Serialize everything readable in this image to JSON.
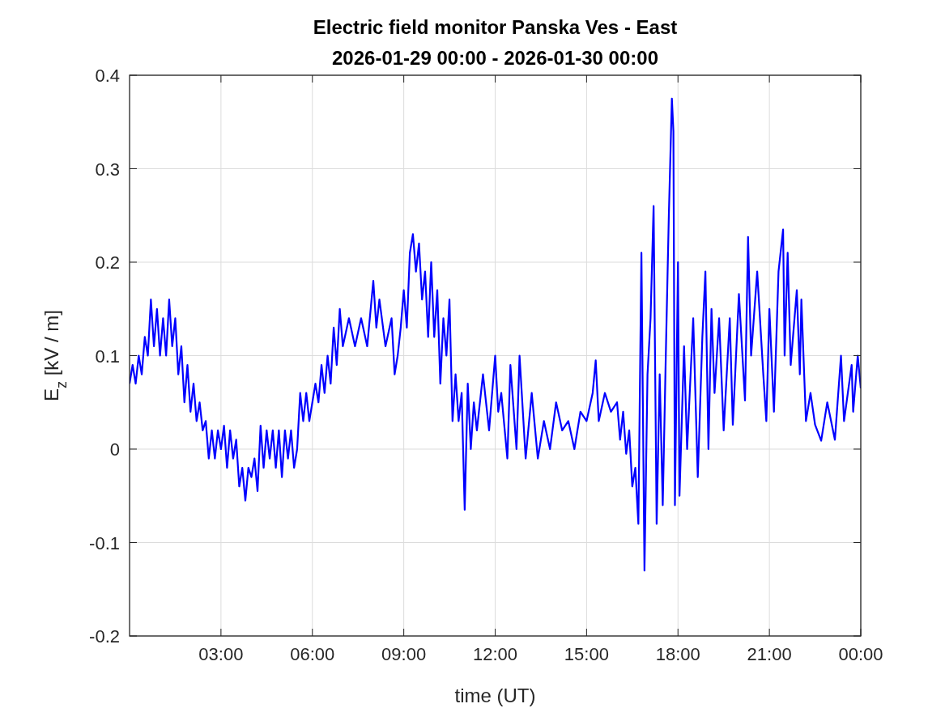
{
  "chart_data": {
    "type": "line",
    "title": "Electric field monitor Panska Ves - East",
    "subtitle": "2026-01-29 00:00 - 2026-01-30 00:00",
    "xlabel": "time (UT)",
    "ylabel": "E$_{z}$ [kV / m]",
    "xlim": [
      0,
      24
    ],
    "xticks": [
      {
        "value": 3,
        "label": "03:00"
      },
      {
        "value": 6,
        "label": "06:00"
      },
      {
        "value": 9,
        "label": "09:00"
      },
      {
        "value": 12,
        "label": "12:00"
      },
      {
        "value": 15,
        "label": "15:00"
      },
      {
        "value": 18,
        "label": "18:00"
      },
      {
        "value": 21,
        "label": "21:00"
      },
      {
        "value": 24,
        "label": "00:00"
      }
    ],
    "ylim": [
      -0.2,
      0.4
    ],
    "yticks": [
      -0.2,
      -0.1,
      0,
      0.1,
      0.2,
      0.3,
      0.4
    ],
    "grid": true,
    "series": [
      {
        "color": "#0000ff",
        "x": [
          0.0,
          0.1,
          0.2,
          0.3,
          0.4,
          0.5,
          0.6,
          0.7,
          0.8,
          0.9,
          1.0,
          1.1,
          1.2,
          1.3,
          1.4,
          1.5,
          1.6,
          1.7,
          1.8,
          1.9,
          2.0,
          2.1,
          2.2,
          2.3,
          2.4,
          2.5,
          2.6,
          2.7,
          2.8,
          2.9,
          3.0,
          3.1,
          3.2,
          3.3,
          3.4,
          3.5,
          3.6,
          3.7,
          3.8,
          3.9,
          4.0,
          4.1,
          4.2,
          4.3,
          4.4,
          4.5,
          4.6,
          4.7,
          4.8,
          4.9,
          5.0,
          5.1,
          5.2,
          5.3,
          5.4,
          5.5,
          5.6,
          5.7,
          5.8,
          5.9,
          6.0,
          6.1,
          6.2,
          6.3,
          6.4,
          6.5,
          6.6,
          6.7,
          6.8,
          6.9,
          7.0,
          7.2,
          7.4,
          7.6,
          7.8,
          8.0,
          8.1,
          8.2,
          8.4,
          8.6,
          8.7,
          8.8,
          8.9,
          9.0,
          9.1,
          9.2,
          9.3,
          9.4,
          9.5,
          9.6,
          9.7,
          9.8,
          9.9,
          10.0,
          10.1,
          10.2,
          10.3,
          10.4,
          10.5,
          10.6,
          10.7,
          10.8,
          10.9,
          11.0,
          11.1,
          11.2,
          11.3,
          11.4,
          11.6,
          11.8,
          12.0,
          12.1,
          12.2,
          12.4,
          12.5,
          12.7,
          12.8,
          13.0,
          13.2,
          13.4,
          13.6,
          13.8,
          14.0,
          14.2,
          14.4,
          14.6,
          14.8,
          15.0,
          15.2,
          15.3,
          15.4,
          15.6,
          15.8,
          16.0,
          16.1,
          16.2,
          16.3,
          16.4,
          16.5,
          16.6,
          16.7,
          16.8,
          16.9,
          17.0,
          17.1,
          17.2,
          17.3,
          17.4,
          17.5,
          17.6,
          17.7,
          17.8,
          17.85,
          17.9,
          18.0,
          18.05,
          18.2,
          18.3,
          18.5,
          18.65,
          18.8,
          18.9,
          19.0,
          19.1,
          19.2,
          19.35,
          19.5,
          19.7,
          19.8,
          20.0,
          20.2,
          20.3,
          20.4,
          20.6,
          20.8,
          20.9,
          21.0,
          21.15,
          21.3,
          21.45,
          21.5,
          21.6,
          21.7,
          21.9,
          22.0,
          22.05,
          22.2,
          22.35,
          22.5,
          22.7,
          22.9,
          23.15,
          23.35,
          23.45,
          23.7,
          23.75,
          23.9,
          24.0
        ],
        "values": [
          0.07,
          0.09,
          0.07,
          0.1,
          0.08,
          0.12,
          0.1,
          0.16,
          0.11,
          0.15,
          0.1,
          0.14,
          0.1,
          0.16,
          0.11,
          0.14,
          0.08,
          0.11,
          0.05,
          0.09,
          0.04,
          0.07,
          0.03,
          0.05,
          0.02,
          0.03,
          -0.01,
          0.02,
          -0.01,
          0.02,
          0.0,
          0.025,
          -0.02,
          0.02,
          -0.01,
          0.01,
          -0.04,
          -0.02,
          -0.055,
          -0.02,
          -0.03,
          -0.01,
          -0.045,
          0.025,
          -0.02,
          0.02,
          -0.01,
          0.02,
          -0.02,
          0.02,
          -0.03,
          0.02,
          -0.01,
          0.02,
          -0.02,
          0.0,
          0.06,
          0.03,
          0.06,
          0.03,
          0.05,
          0.07,
          0.05,
          0.09,
          0.06,
          0.1,
          0.07,
          0.13,
          0.09,
          0.15,
          0.11,
          0.14,
          0.11,
          0.14,
          0.11,
          0.18,
          0.13,
          0.16,
          0.11,
          0.14,
          0.08,
          0.1,
          0.13,
          0.17,
          0.13,
          0.21,
          0.23,
          0.19,
          0.22,
          0.16,
          0.19,
          0.12,
          0.2,
          0.12,
          0.17,
          0.07,
          0.14,
          0.1,
          0.16,
          0.03,
          0.08,
          0.03,
          0.06,
          -0.065,
          0.07,
          0.0,
          0.05,
          0.02,
          0.08,
          0.02,
          0.1,
          0.04,
          0.06,
          -0.01,
          0.09,
          0.0,
          0.1,
          -0.01,
          0.06,
          -0.01,
          0.03,
          0.0,
          0.05,
          0.02,
          0.03,
          0.0,
          0.04,
          0.03,
          0.06,
          0.095,
          0.03,
          0.06,
          0.04,
          0.05,
          0.01,
          0.04,
          -0.005,
          0.02,
          -0.04,
          -0.02,
          -0.08,
          0.21,
          -0.13,
          0.08,
          0.14,
          0.26,
          -0.08,
          0.08,
          -0.06,
          0.1,
          0.25,
          0.375,
          0.34,
          -0.06,
          0.2,
          -0.05,
          0.11,
          0.0,
          0.14,
          -0.03,
          0.12,
          0.19,
          0.0,
          0.15,
          0.06,
          0.14,
          0.02,
          0.14,
          0.026,
          0.166,
          0.052,
          0.227,
          0.1,
          0.19,
          0.08,
          0.03,
          0.15,
          0.04,
          0.19,
          0.235,
          0.1,
          0.21,
          0.09,
          0.17,
          0.08,
          0.16,
          0.03,
          0.06,
          0.026,
          0.009,
          0.05,
          0.01,
          0.1,
          0.03,
          0.09,
          0.04,
          0.1,
          0.065
        ]
      }
    ]
  }
}
